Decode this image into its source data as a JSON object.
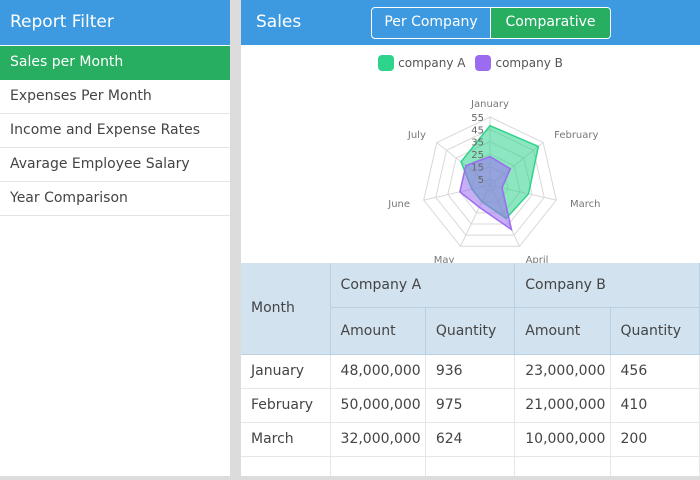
{
  "sidebar": {
    "title": "Report Filter",
    "items": [
      {
        "label": "Sales per Month",
        "active": true
      },
      {
        "label": "Expenses Per Month",
        "active": false
      },
      {
        "label": "Income and Expense Rates",
        "active": false
      },
      {
        "label": "Avarage Employee Salary",
        "active": false
      },
      {
        "label": "Year Comparison",
        "active": false
      }
    ]
  },
  "main": {
    "title": "Sales",
    "toggle": {
      "left": "Per Company",
      "right": "Comparative",
      "selected": "Comparative"
    }
  },
  "chart_data": {
    "type": "radar",
    "categories": [
      "January",
      "February",
      "March",
      "April",
      "May",
      "June",
      "July"
    ],
    "ticks": [
      "5",
      "15",
      "25",
      "35",
      "45",
      "55"
    ],
    "rmax": 55,
    "series": [
      {
        "name": "company A",
        "color": "#2ed38c",
        "values": [
          48,
          50,
          32,
          30,
          15,
          15,
          30
        ]
      },
      {
        "name": "company B",
        "color": "#9b6bf0",
        "values": [
          23,
          21,
          10,
          40,
          20,
          25,
          25
        ]
      }
    ]
  },
  "table": {
    "month_header": "Month",
    "groups": [
      "Company A",
      "Company B"
    ],
    "subheaders": [
      "Amount",
      "Quantity",
      "Amount",
      "Quantity"
    ],
    "rows": [
      [
        "January",
        "48,000,000",
        "936",
        "23,000,000",
        "456"
      ],
      [
        "February",
        "50,000,000",
        "975",
        "21,000,000",
        "410"
      ],
      [
        "March",
        "32,000,000",
        "624",
        "10,000,000",
        "200"
      ]
    ]
  }
}
